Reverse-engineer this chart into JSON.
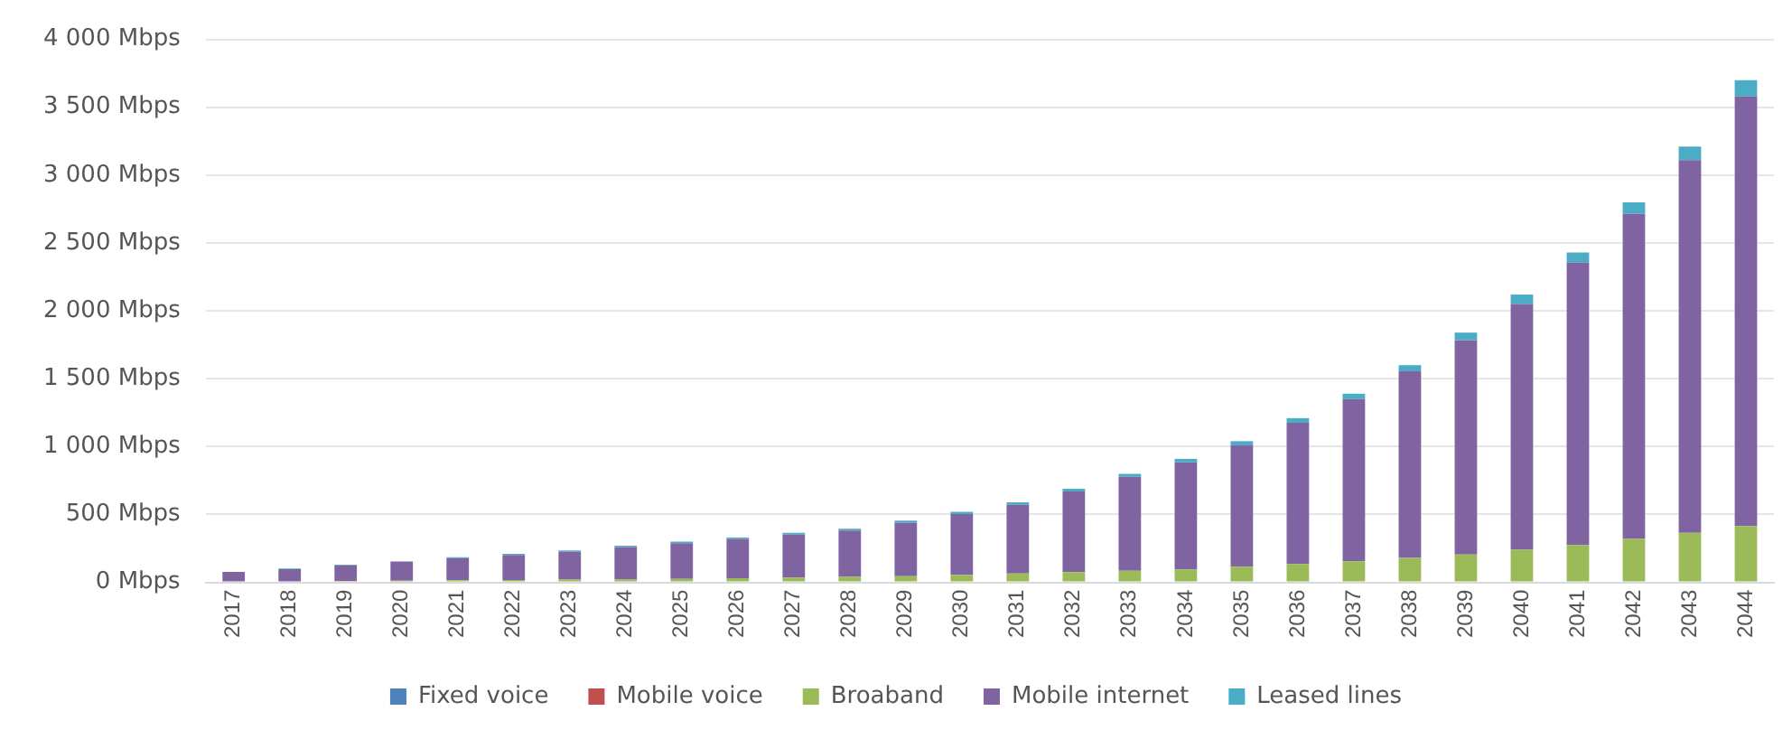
{
  "chart_data": {
    "type": "bar",
    "stacked": true,
    "categories": [
      "2017",
      "2018",
      "2019",
      "2020",
      "2021",
      "2022",
      "2023",
      "2024",
      "2025",
      "2026",
      "2027",
      "2028",
      "2029",
      "2030",
      "2031",
      "2032",
      "2033",
      "2034",
      "2035",
      "2036",
      "2037",
      "2038",
      "2039",
      "2040",
      "2041",
      "2042",
      "2043",
      "2044"
    ],
    "series": [
      {
        "name": "Fixed voice",
        "color": "#4f81bd",
        "values": [
          0,
          0,
          0,
          0,
          0,
          0,
          0,
          0,
          0,
          0,
          0,
          0,
          0,
          0,
          0,
          0,
          0,
          0,
          0,
          0,
          0,
          0,
          0,
          0,
          0,
          0,
          0,
          0
        ]
      },
      {
        "name": "Mobile voice",
        "color": "#c0504d",
        "values": [
          0,
          0,
          0,
          0,
          0,
          0,
          0,
          0,
          0,
          0,
          0,
          0,
          0,
          0,
          0,
          0,
          0,
          0,
          0,
          0,
          0,
          0,
          0,
          0,
          0,
          0,
          0,
          0
        ]
      },
      {
        "name": "Broaband",
        "color": "#9bbb59",
        "values": [
          null,
          null,
          10,
          12,
          15,
          18,
          20,
          22,
          25,
          30,
          35,
          40,
          45,
          55,
          65,
          75,
          85,
          95,
          115,
          135,
          155,
          180,
          205,
          240,
          275,
          320,
          365,
          415
        ]
      },
      {
        "name": "Mobile internet",
        "color": "#8064a2",
        "values": [
          77,
          98,
          115,
          142,
          163,
          184,
          206,
          238,
          264,
          288,
          317,
          341,
          395,
          448,
          506,
          594,
          692,
          789,
          895,
          1040,
          1195,
          1375,
          1580,
          1810,
          2080,
          2395,
          2745,
          3165
        ]
      },
      {
        "name": "Leased lines",
        "color": "#4bacc6",
        "values": [
          null,
          4,
          5,
          null,
          7,
          8,
          9,
          10,
          11,
          12,
          13,
          14,
          15,
          17,
          19,
          21,
          23,
          26,
          30,
          35,
          40,
          45,
          55,
          70,
          75,
          85,
          100,
          120
        ]
      }
    ],
    "ylim": [
      0,
      4000
    ],
    "yticks": [
      {
        "value": 0,
        "label": "0 Mbps"
      },
      {
        "value": 500,
        "label": "500 Mbps"
      },
      {
        "value": 1000,
        "label": "1 000 Mbps"
      },
      {
        "value": 1500,
        "label": "1 500 Mbps"
      },
      {
        "value": 2000,
        "label": "2 000 Mbps"
      },
      {
        "value": 2500,
        "label": "2 500 Mbps"
      },
      {
        "value": 3000,
        "label": "3 000 Mbps"
      },
      {
        "value": 3500,
        "label": "3 500 Mbps"
      },
      {
        "value": 4000,
        "label": "4 000 Mbps"
      }
    ],
    "grid": "y",
    "legend": "bottom"
  }
}
